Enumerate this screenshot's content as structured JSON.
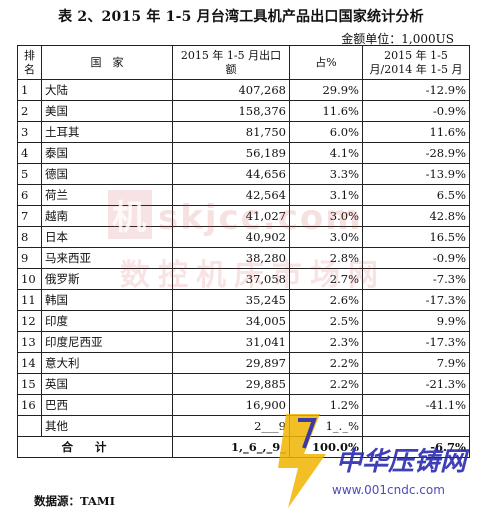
{
  "title": "表 2、2015 年 1-5 月台湾工具机产品出口国家统计分析",
  "unit": "金额单位：1,000US",
  "headers": {
    "rank": "排名",
    "country": "国　家",
    "value": "2015 年 1-5 月出口额",
    "share": "占%",
    "yoy": "2015 年 1-5 月/2014 年 1-5 月"
  },
  "rows": [
    {
      "rank": "1",
      "country": "大陆",
      "value": "407,268",
      "share": "29.9%",
      "yoy": "-12.9%"
    },
    {
      "rank": "2",
      "country": "美国",
      "value": "158,376",
      "share": "11.6%",
      "yoy": "-0.9%"
    },
    {
      "rank": "3",
      "country": "土耳其",
      "value": "81,750",
      "share": "6.0%",
      "yoy": "11.6%"
    },
    {
      "rank": "4",
      "country": "泰国",
      "value": "56,189",
      "share": "4.1%",
      "yoy": "-28.9%"
    },
    {
      "rank": "5",
      "country": "德国",
      "value": "44,656",
      "share": "3.3%",
      "yoy": "-13.9%"
    },
    {
      "rank": "6",
      "country": "荷兰",
      "value": "42,564",
      "share": "3.1%",
      "yoy": "6.5%"
    },
    {
      "rank": "7",
      "country": "越南",
      "value": "41,027",
      "share": "3.0%",
      "yoy": "42.8%"
    },
    {
      "rank": "8",
      "country": "日本",
      "value": "40,902",
      "share": "3.0%",
      "yoy": "16.5%"
    },
    {
      "rank": "9",
      "country": "马来西亚",
      "value": "38,280",
      "share": "2.8%",
      "yoy": "-0.9%"
    },
    {
      "rank": "10",
      "country": "俄罗斯",
      "value": "37,058",
      "share": "2.7%",
      "yoy": "-7.3%"
    },
    {
      "rank": "11",
      "country": "韩国",
      "value": "35,245",
      "share": "2.6%",
      "yoy": "-17.3%"
    },
    {
      "rank": "12",
      "country": "印度",
      "value": "34,005",
      "share": "2.5%",
      "yoy": "9.9%"
    },
    {
      "rank": "13",
      "country": "印度尼西亚",
      "value": "31,041",
      "share": "2.3%",
      "yoy": "-17.3%"
    },
    {
      "rank": "14",
      "country": "意大利",
      "value": "29,897",
      "share": "2.2%",
      "yoy": "7.9%"
    },
    {
      "rank": "15",
      "country": "英国",
      "value": "29,885",
      "share": "2.2%",
      "yoy": "-21.3%"
    },
    {
      "rank": "16",
      "country": "巴西",
      "value": "16,900",
      "share": "1.2%",
      "yoy": "-41.1%"
    }
  ],
  "other": {
    "label": "其他",
    "value": "2___9",
    "share": "1_._%",
    "yoy": ""
  },
  "total": {
    "label": "合计",
    "value": "1,_6_,_9_",
    "share": "100.0%",
    "yoy": "-6.7%"
  },
  "source": "数据源：TAMI",
  "watermarks": {
    "skjcc_box": "机",
    "skjcc_url": "skjcc.com",
    "skjcc_cn": "数控机床市场网",
    "cndc_cn": "中华压铸网",
    "cndc_url": "www.001cndc.com"
  }
}
